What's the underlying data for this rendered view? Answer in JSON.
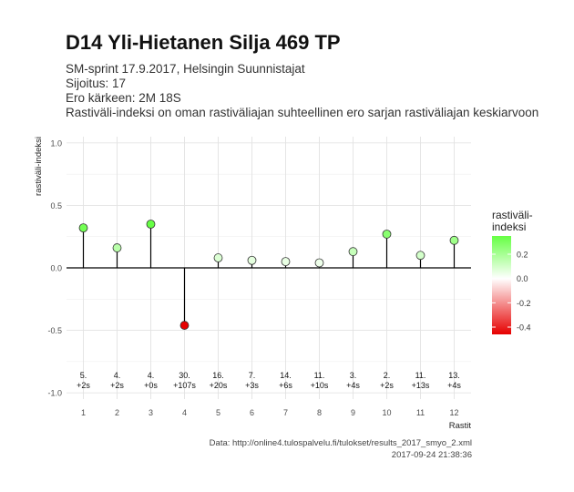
{
  "header": {
    "title": "D14 Yli-Hietanen Silja 469 TP",
    "subtitle_lines": [
      "SM-sprint 17.9.2017, Helsingin Suunnistajat",
      "Sijoitus: 17",
      "Ero kärkeen: 2M 18S",
      "Rastiväli-indeksi on oman rastiväliajan suhteellinen ero sarjan rastiväliajan keskiarvoon"
    ]
  },
  "caption": {
    "line1": "Data: http://online4.tulospalvelu.fi/tulokset/results_2017_smyo_2.xml",
    "line2": "2017-09-24 21:38:36"
  },
  "colors": {
    "positive": "#66ff44",
    "zero": "#ffffff",
    "negative": "#e60000",
    "grid": "#e3e3e3",
    "stem": "#000000"
  },
  "chart_data": {
    "type": "lollipop",
    "xlabel": "Rastit",
    "ylabel": "rastiväli-indeksi",
    "ylim": [
      -1.05,
      1.05
    ],
    "y_ticks": [
      -1.0,
      -0.5,
      0.0,
      0.5,
      1.0
    ],
    "y_tick_labels": [
      "-1.0",
      "-0.5",
      "0.0",
      "0.5",
      "1.0"
    ],
    "x": [
      1,
      2,
      3,
      4,
      5,
      6,
      7,
      8,
      9,
      10,
      11,
      12
    ],
    "values": [
      0.32,
      0.16,
      0.35,
      -0.46,
      0.08,
      0.06,
      0.05,
      0.04,
      0.13,
      0.27,
      0.1,
      0.22
    ],
    "ranks": [
      "5.",
      "4.",
      "4.",
      "30.",
      "16.",
      "7.",
      "14.",
      "11.",
      "3.",
      "2.",
      "11.",
      "13."
    ],
    "diffs": [
      "+2s",
      "+2s",
      "+0s",
      "+107s",
      "+20s",
      "+3s",
      "+6s",
      "+10s",
      "+4s",
      "+2s",
      "+13s",
      "+4s"
    ],
    "legend": {
      "title_lines": [
        "rastiväli-",
        "indeksi"
      ],
      "position": "right",
      "range": [
        -0.46,
        0.35
      ],
      "ticks": [
        0.2,
        0.0,
        -0.2,
        -0.4
      ],
      "tick_labels": [
        "0.2",
        "0.0",
        "-0.2",
        "-0.4"
      ]
    }
  }
}
